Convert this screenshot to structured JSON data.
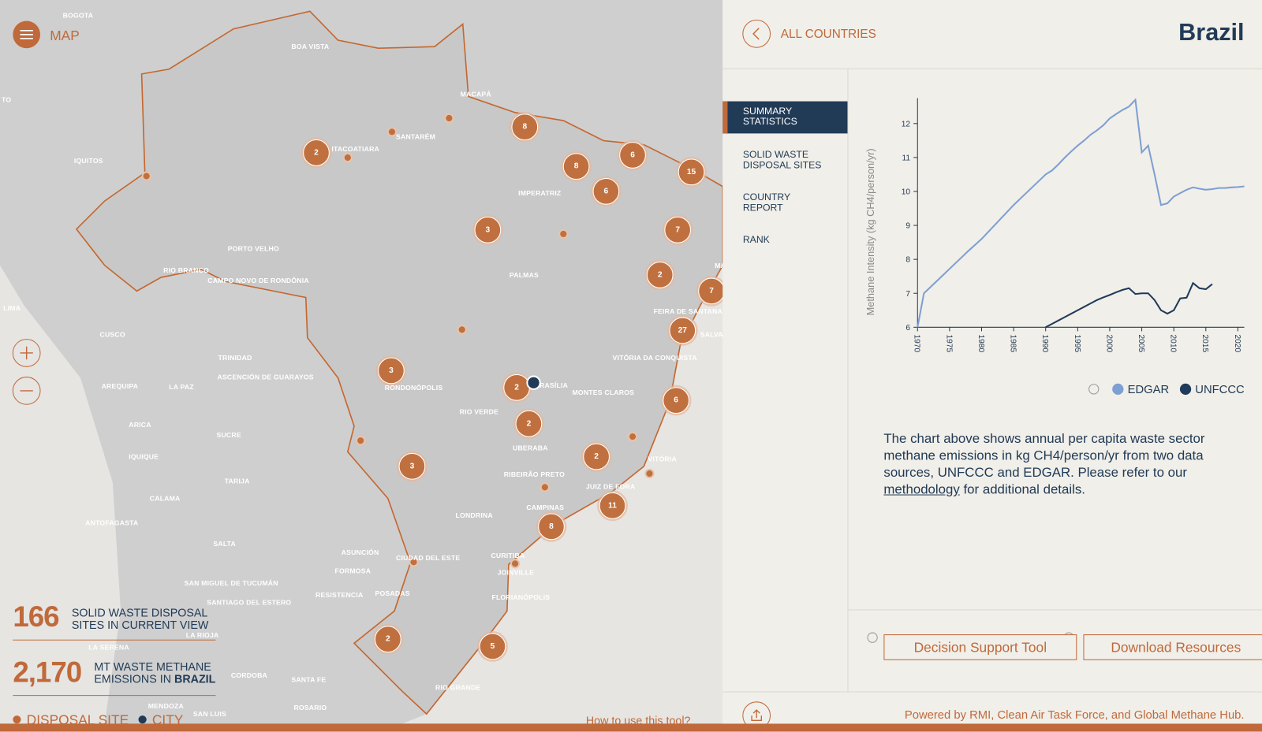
{
  "map": {
    "menu_label": "MAP",
    "place_labels": [
      "BOGOTA",
      "TO",
      "BOA VISTA",
      "MACAPÁ",
      "SANTARÉM",
      "ITACOATIARA",
      "IQUITOS",
      "IMPERATRIZ",
      "PORTO VELHO",
      "RIO BRANCO",
      "CAMPO NOVO DE RONDÔNIA",
      "PALMAS",
      "MA",
      "LIMA",
      "CUSCO",
      "FEIRA DE SANTANA",
      "SALVADOR",
      "TRINIDAD",
      "VITÓRIA DA CONQUISTA",
      "ASCENCIÓN DE GUARAYOS",
      "LA PAZ",
      "AREQUIPA",
      "BRASÍLIA",
      "RONDONÓPOLIS",
      "MONTES CLAROS",
      "RIO VERDE",
      "ARICA",
      "SUCRE",
      "UBERABA",
      "IQUIQUE",
      "TARIJA",
      "VITÓRIA",
      "RIBEIRÃO PRETO",
      "JUIZ DE FORA",
      "CALAMA",
      "CAMPINAS",
      "LONDRINA",
      "ANTOFAGASTA",
      "CURITIBA",
      "SALTA",
      "ASUNCIÓN",
      "CIUDAD DEL ESTE",
      "FORMOSA",
      "JOINVILLE",
      "SAN MIGUEL DE TUCUMÁN",
      "RESISTENCIA",
      "POSADAS",
      "FLORIANÓPOLIS",
      "SANTIAGO DEL ESTERO",
      "LA RIOJA",
      "LA SERENA",
      "CORDOBA",
      "SANTA FE",
      "RIO GRANDE",
      "MENDOZA",
      "ROSARIO",
      "SAN LUIS"
    ],
    "clusters": [
      2,
      8,
      8,
      6,
      15,
      6,
      3,
      7,
      2,
      7,
      27,
      3,
      2,
      2,
      2,
      6,
      3,
      11,
      8,
      2,
      5
    ],
    "stats": [
      {
        "value": "166",
        "label": "SOLID WASTE DISPOSAL SITES IN CURRENT VIEW"
      },
      {
        "value": "2,170",
        "label": "MT WASTE METHANE EMISSIONS IN",
        "place": "BRAZIL"
      }
    ],
    "legend": [
      "DISPOSAL SITE",
      "CITY"
    ],
    "help_link": "How to use this tool?"
  },
  "header": {
    "back": "ALL COUNTRIES",
    "country": "Brazil"
  },
  "nav": [
    "SUMMARY STATISTICS",
    "SOLID WASTE DISPOSAL SITES",
    "COUNTRY REPORT",
    "RANK"
  ],
  "chart_data": {
    "type": "line",
    "y_label": "Methane Intensity (kg CH4/person/yr)",
    "x": [
      1970,
      1971,
      1972,
      1973,
      1974,
      1975,
      1976,
      1977,
      1978,
      1979,
      1980,
      1981,
      1982,
      1983,
      1984,
      1985,
      1986,
      1987,
      1988,
      1989,
      1990,
      1991,
      1992,
      1993,
      1994,
      1995,
      1996,
      1997,
      1998,
      1999,
      2000,
      2001,
      2002,
      2003,
      2004,
      2005,
      2006,
      2007,
      2008,
      2009,
      2010,
      2011,
      2012,
      2013,
      2014,
      2015,
      2016,
      2017,
      2018,
      2019,
      2020,
      2021
    ],
    "series": [
      {
        "name": "EDGAR",
        "color": "#7e9fd3",
        "values": [
          6.0,
          7.0,
          7.18,
          7.36,
          7.54,
          7.72,
          7.9,
          8.08,
          8.26,
          8.43,
          8.6,
          8.8,
          9.0,
          9.2,
          9.4,
          9.6,
          9.78,
          9.96,
          10.14,
          10.32,
          10.5,
          10.62,
          10.8,
          11.0,
          11.18,
          11.35,
          11.5,
          11.67,
          11.8,
          11.95,
          12.15,
          12.28,
          12.4,
          12.5,
          12.7,
          11.15,
          11.35,
          10.5,
          9.6,
          9.65,
          9.85,
          9.95,
          10.05,
          10.12,
          10.08,
          10.05,
          10.07,
          10.1,
          10.1,
          10.12,
          10.13,
          10.15
        ]
      },
      {
        "name": "UNFCCC",
        "color": "#1f3a5a",
        "values": [
          null,
          null,
          null,
          null,
          null,
          null,
          null,
          null,
          null,
          null,
          null,
          null,
          null,
          null,
          null,
          null,
          null,
          null,
          null,
          null,
          6.0,
          6.1,
          6.2,
          6.3,
          6.4,
          6.5,
          6.6,
          6.7,
          6.8,
          6.88,
          6.95,
          7.03,
          7.1,
          7.15,
          6.98,
          7.0,
          7.0,
          6.8,
          6.5,
          6.4,
          6.5,
          6.85,
          6.87,
          7.3,
          7.15,
          7.12,
          7.27,
          null,
          null,
          null,
          null,
          null
        ]
      }
    ],
    "xlim": [
      1970,
      2021
    ],
    "ylim": [
      6,
      12.75
    ],
    "xticks": [
      1970,
      1975,
      1980,
      1985,
      1990,
      1995,
      2000,
      2005,
      2010,
      2015,
      2020
    ],
    "yticks": [
      6,
      7,
      8,
      9,
      10,
      11,
      12
    ]
  },
  "description": {
    "text": "The chart above shows annual per capita waste sector methane emissions in kg CH4/person/yr from two data sources, UNFCCC and EDGAR. Please refer to our",
    "link": "methodology",
    "tail": "for additional details."
  },
  "buttons": [
    "Decision Support Tool",
    "Download Resources"
  ],
  "footer": "Powered by RMI, Clean Air Task Force, and Global Methane Hub."
}
